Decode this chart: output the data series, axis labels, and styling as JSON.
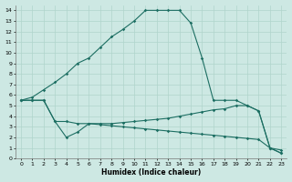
{
  "xlabel": "Humidex (Indice chaleur)",
  "xlim": [
    -0.5,
    23.5
  ],
  "ylim": [
    0,
    14.5
  ],
  "xticks": [
    0,
    1,
    2,
    3,
    4,
    5,
    6,
    7,
    8,
    9,
    10,
    11,
    12,
    13,
    14,
    15,
    16,
    17,
    18,
    19,
    20,
    21,
    22,
    23
  ],
  "yticks": [
    0,
    1,
    2,
    3,
    4,
    5,
    6,
    7,
    8,
    9,
    10,
    11,
    12,
    13,
    14
  ],
  "bg_color": "#cde8e3",
  "grid_color": "#b0d4cc",
  "line_color": "#1c6e62",
  "line1_x": [
    0,
    1,
    2,
    3,
    4,
    5,
    6,
    7,
    8,
    9,
    10,
    11,
    12,
    13,
    14,
    15,
    16,
    17,
    18,
    19,
    20,
    21,
    22,
    23
  ],
  "line1_y": [
    5.5,
    5.8,
    6.5,
    7.2,
    8.0,
    9.0,
    9.5,
    10.5,
    11.5,
    12.2,
    13.0,
    14.0,
    14.0,
    14.0,
    14.0,
    12.8,
    9.5,
    5.5,
    5.5,
    5.5,
    5.0,
    4.5,
    1.0,
    0.5
  ],
  "line2_x": [
    0,
    1,
    2,
    3,
    4,
    5,
    6,
    7,
    8,
    9,
    10,
    11,
    12,
    13,
    14,
    15,
    16,
    17,
    18,
    19,
    20,
    21,
    22,
    23
  ],
  "line2_y": [
    5.5,
    5.5,
    5.5,
    3.5,
    2.0,
    2.5,
    3.3,
    3.3,
    3.3,
    3.4,
    3.5,
    3.6,
    3.7,
    3.8,
    4.0,
    4.2,
    4.4,
    4.6,
    4.7,
    5.0,
    5.0,
    4.5,
    1.0,
    0.8
  ],
  "line3_x": [
    0,
    1,
    2,
    3,
    4,
    5,
    6,
    7,
    8,
    9,
    10,
    11,
    12,
    13,
    14,
    15,
    16,
    17,
    18,
    19,
    20,
    21,
    22,
    23
  ],
  "line3_y": [
    5.5,
    5.5,
    5.5,
    3.5,
    3.5,
    3.3,
    3.3,
    3.2,
    3.1,
    3.0,
    2.9,
    2.8,
    2.7,
    2.6,
    2.5,
    2.4,
    2.3,
    2.2,
    2.1,
    2.0,
    1.9,
    1.8,
    1.0,
    0.5
  ]
}
